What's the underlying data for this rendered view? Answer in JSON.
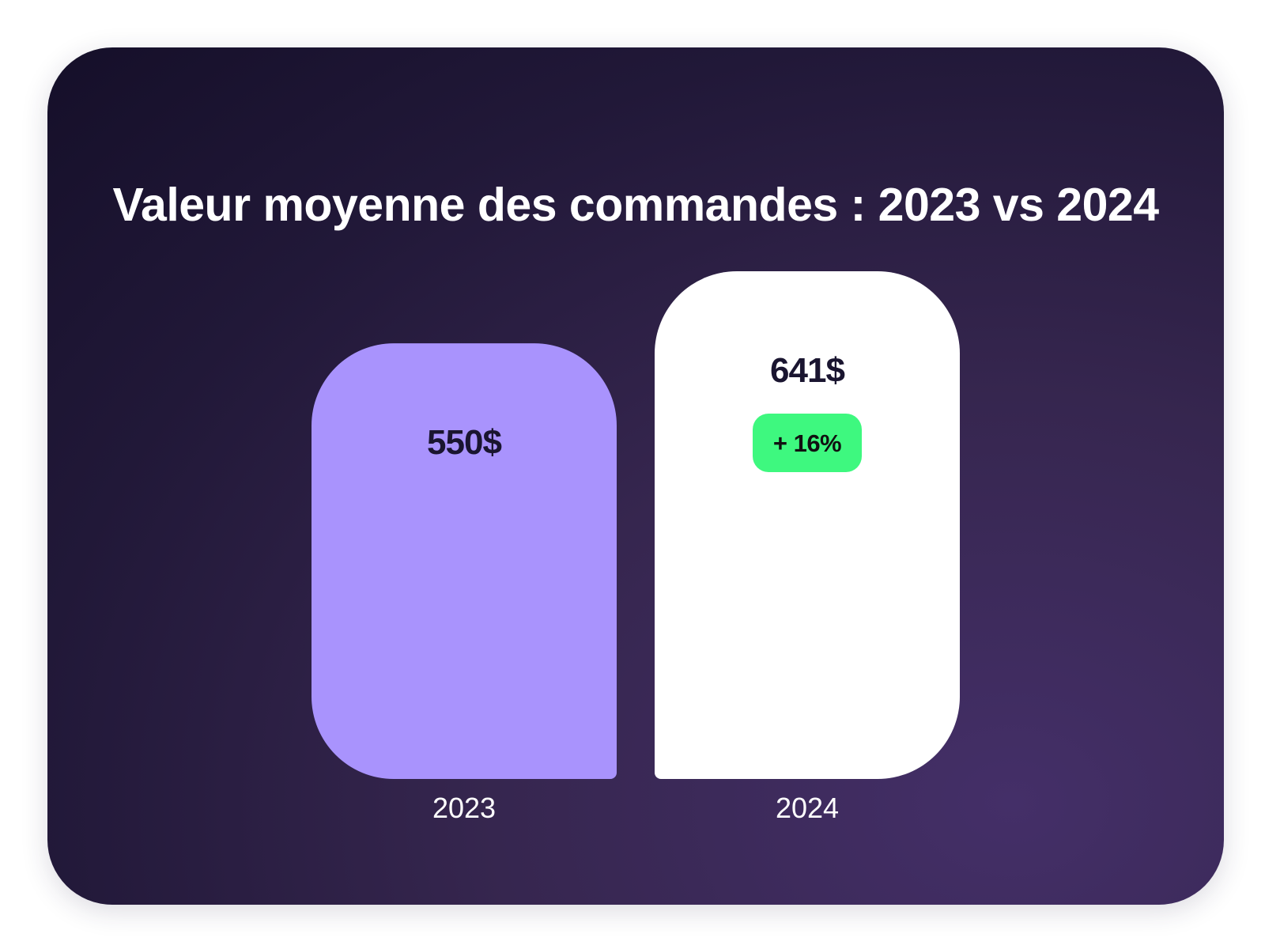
{
  "chart_data": {
    "type": "bar",
    "title": "Valeur moyenne des commandes : 2023 vs 2024",
    "categories": [
      "2023",
      "2024"
    ],
    "values": [
      550,
      641
    ],
    "value_labels": [
      "550$",
      "641$"
    ],
    "unit": "$",
    "xlabel": "",
    "ylabel": "",
    "grid": false,
    "legend": "none",
    "annotations": [
      {
        "category": "2024",
        "text": "+ 16%"
      }
    ],
    "colors": {
      "bar_2023": "#a993fd",
      "bar_2024": "#ffffff",
      "badge": "#3ef87f",
      "value_text": "#1a1530",
      "background_dark": "#150f29",
      "background_light": "#442f68"
    }
  }
}
